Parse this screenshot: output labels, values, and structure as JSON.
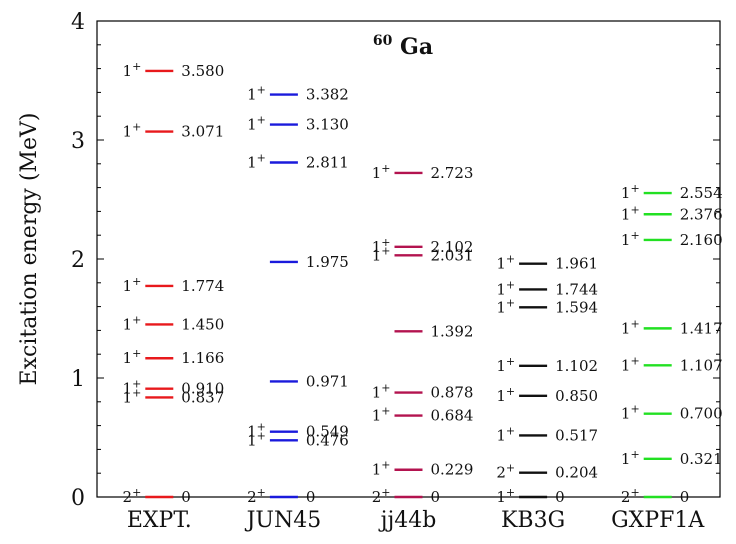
{
  "chart_data": {
    "type": "level-scheme",
    "title": {
      "nucleus_mass": "60",
      "nucleus_symbol": "Ga"
    },
    "ylabel": "Excitation energy (MeV)",
    "ylim": [
      0,
      4
    ],
    "yticks": [
      "0",
      "1",
      "2",
      "3",
      "4"
    ],
    "grid": false,
    "series": [
      {
        "name": "EXPT.",
        "color": "#e8191c",
        "levels": [
          {
            "energy": 0,
            "label": "0",
            "spin": "2",
            "parity": "+"
          },
          {
            "energy": 0.837,
            "label": "0.837",
            "spin": "1",
            "parity": "+"
          },
          {
            "energy": 0.91,
            "label": "0.910",
            "spin": "1",
            "parity": "+"
          },
          {
            "energy": 1.166,
            "label": "1.166",
            "spin": "1",
            "parity": "+"
          },
          {
            "energy": 1.45,
            "label": "1.450",
            "spin": "1",
            "parity": "+"
          },
          {
            "energy": 1.774,
            "label": "1.774",
            "spin": "1",
            "parity": "+"
          },
          {
            "energy": 3.071,
            "label": "3.071",
            "spin": "1",
            "parity": "+"
          },
          {
            "energy": 3.58,
            "label": "3.580",
            "spin": "1",
            "parity": "+"
          }
        ]
      },
      {
        "name": "JUN45",
        "color": "#1a1adc",
        "levels": [
          {
            "energy": 0,
            "label": "0",
            "spin": "2",
            "parity": "+"
          },
          {
            "energy": 0.476,
            "label": "0.476",
            "spin": "1",
            "parity": "+"
          },
          {
            "energy": 0.549,
            "label": "0.549",
            "spin": "1",
            "parity": "+"
          },
          {
            "energy": 0.971,
            "label": "0.971",
            "spin": "",
            "parity": ""
          },
          {
            "energy": 1.975,
            "label": "1.975",
            "spin": "",
            "parity": ""
          },
          {
            "energy": 2.811,
            "label": "2.811",
            "spin": "1",
            "parity": "+"
          },
          {
            "energy": 3.13,
            "label": "3.130",
            "spin": "1",
            "parity": "+"
          },
          {
            "energy": 3.382,
            "label": "3.382",
            "spin": "1",
            "parity": "+"
          }
        ]
      },
      {
        "name": "jj44b",
        "color": "#b3134f",
        "levels": [
          {
            "energy": 0,
            "label": "0",
            "spin": "2",
            "parity": "+"
          },
          {
            "energy": 0.229,
            "label": "0.229",
            "spin": "1",
            "parity": "+"
          },
          {
            "energy": 0.684,
            "label": "0.684",
            "spin": "1",
            "parity": "+"
          },
          {
            "energy": 0.878,
            "label": "0.878",
            "spin": "1",
            "parity": "+"
          },
          {
            "energy": 1.392,
            "label": "1.392",
            "spin": "",
            "parity": ""
          },
          {
            "energy": 2.031,
            "label": "2.031",
            "spin": "1",
            "parity": "+"
          },
          {
            "energy": 2.102,
            "label": "2.102",
            "spin": "1",
            "parity": "+"
          },
          {
            "energy": 2.723,
            "label": "2.723",
            "spin": "1",
            "parity": "+"
          }
        ]
      },
      {
        "name": "KB3G",
        "color": "#111111",
        "levels": [
          {
            "energy": 0,
            "label": "0",
            "spin": "1",
            "parity": "+"
          },
          {
            "energy": 0.204,
            "label": "0.204",
            "spin": "2",
            "parity": "+"
          },
          {
            "energy": 0.517,
            "label": "0.517",
            "spin": "1",
            "parity": "+"
          },
          {
            "energy": 0.85,
            "label": "0.850",
            "spin": "1",
            "parity": "+"
          },
          {
            "energy": 1.102,
            "label": "1.102",
            "spin": "1",
            "parity": "+"
          },
          {
            "energy": 1.594,
            "label": "1.594",
            "spin": "1",
            "parity": "+"
          },
          {
            "energy": 1.744,
            "label": "1.744",
            "spin": "1",
            "parity": "+"
          },
          {
            "energy": 1.961,
            "label": "1.961",
            "spin": "1",
            "parity": "+"
          }
        ]
      },
      {
        "name": "GXPF1A",
        "color": "#22e022",
        "levels": [
          {
            "energy": 0,
            "label": "0",
            "spin": "2",
            "parity": "+"
          },
          {
            "energy": 0.321,
            "label": "0.321",
            "spin": "1",
            "parity": "+"
          },
          {
            "energy": 0.7,
            "label": "0.700",
            "spin": "1",
            "parity": "+"
          },
          {
            "energy": 1.107,
            "label": "1.107",
            "spin": "1",
            "parity": "+"
          },
          {
            "energy": 1.417,
            "label": "1.417",
            "spin": "1",
            "parity": "+"
          },
          {
            "energy": 2.16,
            "label": "2.160",
            "spin": "1",
            "parity": "+"
          },
          {
            "energy": 2.376,
            "label": "2.376",
            "spin": "1",
            "parity": "+"
          },
          {
            "energy": 2.554,
            "label": "2.554",
            "spin": "1",
            "parity": "+"
          }
        ]
      }
    ]
  }
}
